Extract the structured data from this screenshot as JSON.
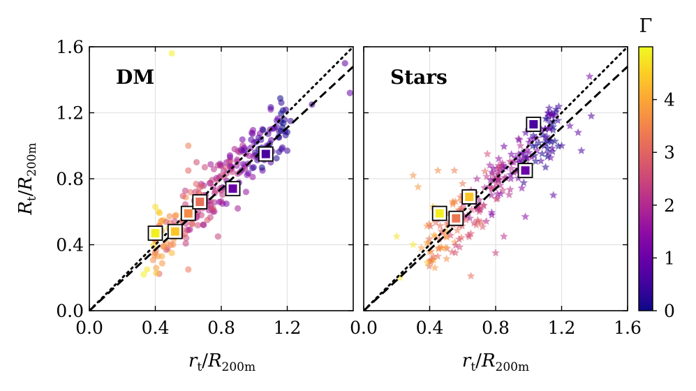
{
  "chart_data": {
    "type": "scatter",
    "colorscale": [
      "#0d0887",
      "#41049d",
      "#6a00a8",
      "#8f0da4",
      "#b12a90",
      "#cc4778",
      "#e16462",
      "#f2844b",
      "#fca636",
      "#fcce25",
      "#f0f921"
    ],
    "colorbar": {
      "label": "Γ",
      "range": [
        0,
        5
      ],
      "ticks": [
        0,
        1,
        2,
        3,
        4
      ],
      "tick_labels": [
        "0",
        "1",
        "2",
        "3",
        "4"
      ]
    },
    "reference_lines": [
      {
        "style": "dotted",
        "slope": 1.0
      },
      {
        "style": "dashed",
        "slope": 0.925
      }
    ],
    "panels": [
      {
        "title": "DM",
        "marker": "circle",
        "xlim": [
          0,
          1.6
        ],
        "ylim": [
          0,
          1.6
        ],
        "xticks": [
          0.0,
          0.4,
          0.8,
          1.2
        ],
        "xtick_labels": [
          "0.0",
          "0.4",
          "0.8",
          "1.2"
        ],
        "yticks": [
          0.0,
          0.4,
          0.8,
          1.2,
          1.6
        ],
        "ytick_labels": [
          "0.0",
          "0.4",
          "0.8",
          "1.2",
          "1.6"
        ],
        "xlabel": "rt/R200m",
        "ylabel": "Rt/R200m",
        "grid": true,
        "seed": 11,
        "points": [
          {
            "x": 0.5,
            "y": 1.56,
            "g": 4.9
          },
          {
            "x": 0.33,
            "y": 0.22,
            "g": 4.9
          },
          {
            "x": 0.35,
            "y": 0.25,
            "g": 4.8
          },
          {
            "x": 0.4,
            "y": 0.63,
            "g": 4.7
          },
          {
            "x": 0.42,
            "y": 0.6,
            "g": 4.6
          },
          {
            "x": 0.45,
            "y": 0.55,
            "g": 4.5
          },
          {
            "x": 0.48,
            "y": 0.5,
            "g": 4.4
          },
          {
            "x": 0.5,
            "y": 0.35,
            "g": 4.2
          },
          {
            "x": 0.44,
            "y": 0.33,
            "g": 4.0
          },
          {
            "x": 0.6,
            "y": 1.0,
            "g": 3.4
          },
          {
            "x": 0.6,
            "y": 0.25,
            "g": 3.3
          },
          {
            "x": 0.6,
            "y": 0.85,
            "g": 3.0
          },
          {
            "x": 0.65,
            "y": 0.9,
            "g": 2.6
          },
          {
            "x": 0.7,
            "y": 0.87,
            "g": 2.5
          },
          {
            "x": 0.78,
            "y": 0.45,
            "g": 2.4
          },
          {
            "x": 0.75,
            "y": 0.6,
            "g": 2.2
          },
          {
            "x": 0.8,
            "y": 0.88,
            "g": 2.1
          },
          {
            "x": 0.9,
            "y": 0.62,
            "g": 1.8
          },
          {
            "x": 0.95,
            "y": 0.72,
            "g": 1.6
          },
          {
            "x": 1.0,
            "y": 1.02,
            "g": 1.3
          },
          {
            "x": 1.05,
            "y": 1.1,
            "g": 1.1
          },
          {
            "x": 1.1,
            "y": 1.22,
            "g": 1.2
          },
          {
            "x": 1.1,
            "y": 0.9,
            "g": 0.8
          },
          {
            "x": 1.15,
            "y": 1.05,
            "g": 0.6
          },
          {
            "x": 1.2,
            "y": 0.97,
            "g": 0.5
          },
          {
            "x": 1.22,
            "y": 1.15,
            "g": 0.4
          },
          {
            "x": 1.55,
            "y": 1.5,
            "g": 0.8
          },
          {
            "x": 1.58,
            "y": 1.32,
            "g": 0.9
          },
          {
            "x": 1.35,
            "y": 1.25,
            "g": 0.7
          },
          {
            "x": 1.05,
            "y": 0.85,
            "g": 0.9
          }
        ],
        "highlighted": [
          {
            "x": 0.4,
            "y": 0.47,
            "g": 4.9
          },
          {
            "x": 0.52,
            "y": 0.48,
            "g": 4.4
          },
          {
            "x": 0.6,
            "y": 0.59,
            "g": 3.6
          },
          {
            "x": 0.67,
            "y": 0.66,
            "g": 3.2
          },
          {
            "x": 0.87,
            "y": 0.74,
            "g": 1.0
          },
          {
            "x": 1.07,
            "y": 0.95,
            "g": 0.6
          }
        ]
      },
      {
        "title": "Stars",
        "marker": "star",
        "xlim": [
          0,
          1.6
        ],
        "ylim": [
          0,
          1.6
        ],
        "xticks": [
          0.0,
          0.4,
          0.8,
          1.2,
          1.6
        ],
        "xtick_labels": [
          "0.0",
          "0.4",
          "0.8",
          "1.2",
          "1.6"
        ],
        "yticks": [
          0.0,
          0.4,
          0.8,
          1.2,
          1.6
        ],
        "ytick_labels": [],
        "xlabel": "rt/R200m",
        "ylabel": "",
        "grid": true,
        "seed": 29,
        "points": [
          {
            "x": 0.2,
            "y": 0.45,
            "g": 4.7
          },
          {
            "x": 0.22,
            "y": 0.2,
            "g": 4.8
          },
          {
            "x": 0.3,
            "y": 0.4,
            "g": 4.8
          },
          {
            "x": 0.3,
            "y": 0.82,
            "g": 3.7
          },
          {
            "x": 0.33,
            "y": 0.75,
            "g": 3.8
          },
          {
            "x": 0.35,
            "y": 0.38,
            "g": 3.9
          },
          {
            "x": 0.4,
            "y": 0.3,
            "g": 3.5
          },
          {
            "x": 0.42,
            "y": 0.63,
            "g": 4.2
          },
          {
            "x": 0.45,
            "y": 0.85,
            "g": 3.6
          },
          {
            "x": 0.55,
            "y": 0.85,
            "g": 3.4
          },
          {
            "x": 0.6,
            "y": 0.77,
            "g": 3.3
          },
          {
            "x": 0.65,
            "y": 0.21,
            "g": 3.1
          },
          {
            "x": 0.7,
            "y": 0.6,
            "g": 2.6
          },
          {
            "x": 0.75,
            "y": 0.95,
            "g": 2.6
          },
          {
            "x": 0.8,
            "y": 0.35,
            "g": 2.4
          },
          {
            "x": 0.85,
            "y": 0.45,
            "g": 2.1
          },
          {
            "x": 0.9,
            "y": 0.9,
            "g": 2.2
          },
          {
            "x": 0.95,
            "y": 1.0,
            "g": 2.0
          },
          {
            "x": 0.98,
            "y": 0.57,
            "g": 1.4
          },
          {
            "x": 1.05,
            "y": 0.97,
            "g": 1.5
          },
          {
            "x": 1.1,
            "y": 1.1,
            "g": 1.2
          },
          {
            "x": 1.12,
            "y": 1.18,
            "g": 1.1
          },
          {
            "x": 1.15,
            "y": 0.7,
            "g": 0.8
          },
          {
            "x": 1.2,
            "y": 1.0,
            "g": 0.5
          },
          {
            "x": 1.25,
            "y": 1.12,
            "g": 0.9
          },
          {
            "x": 1.3,
            "y": 1.08,
            "g": 0.8
          },
          {
            "x": 1.32,
            "y": 0.97,
            "g": 0.6
          },
          {
            "x": 1.37,
            "y": 1.42,
            "g": 1.2
          },
          {
            "x": 1.38,
            "y": 1.18,
            "g": 0.7
          },
          {
            "x": 1.1,
            "y": 1.05,
            "g": 0.7
          },
          {
            "x": 1.05,
            "y": 1.15,
            "g": 0.9
          },
          {
            "x": 0.62,
            "y": 0.55,
            "g": 3.0
          },
          {
            "x": 0.5,
            "y": 0.45,
            "g": 3.8
          }
        ],
        "highlighted": [
          {
            "x": 0.46,
            "y": 0.59,
            "g": 4.9
          },
          {
            "x": 0.56,
            "y": 0.56,
            "g": 3.3
          },
          {
            "x": 0.64,
            "y": 0.69,
            "g": 4.4
          },
          {
            "x": 0.98,
            "y": 0.85,
            "g": 1.0
          },
          {
            "x": 1.03,
            "y": 1.13,
            "g": 0.6
          }
        ]
      }
    ]
  }
}
